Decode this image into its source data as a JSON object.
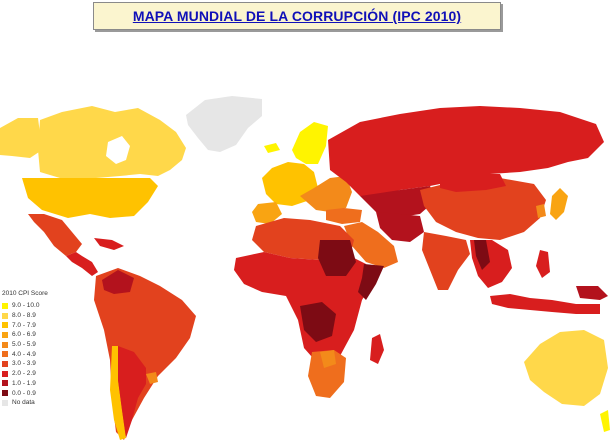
{
  "title": "MAPA MUNDIAL DE LA CORRUPCIÓN  (IPC 2010)",
  "legend": {
    "title": "2010 CPI Score",
    "items": [
      {
        "label": "9.0 - 10.0",
        "color": "#fff400"
      },
      {
        "label": "8.0 - 8.9",
        "color": "#ffd84a"
      },
      {
        "label": "7.0 - 7.9",
        "color": "#ffc200"
      },
      {
        "label": "6.0 - 6.9",
        "color": "#f9a412"
      },
      {
        "label": "5.0 - 5.9",
        "color": "#f38a1a"
      },
      {
        "label": "4.0 - 4.9",
        "color": "#ef6e1d"
      },
      {
        "label": "3.0 - 3.9",
        "color": "#e2421e"
      },
      {
        "label": "2.0 - 2.9",
        "color": "#d81e1e"
      },
      {
        "label": "1.0 - 1.9",
        "color": "#b3121d"
      },
      {
        "label": "0.0 - 0.9",
        "color": "#7d0b14"
      },
      {
        "label": "No data",
        "color": "#e6e6e6"
      }
    ]
  }
}
